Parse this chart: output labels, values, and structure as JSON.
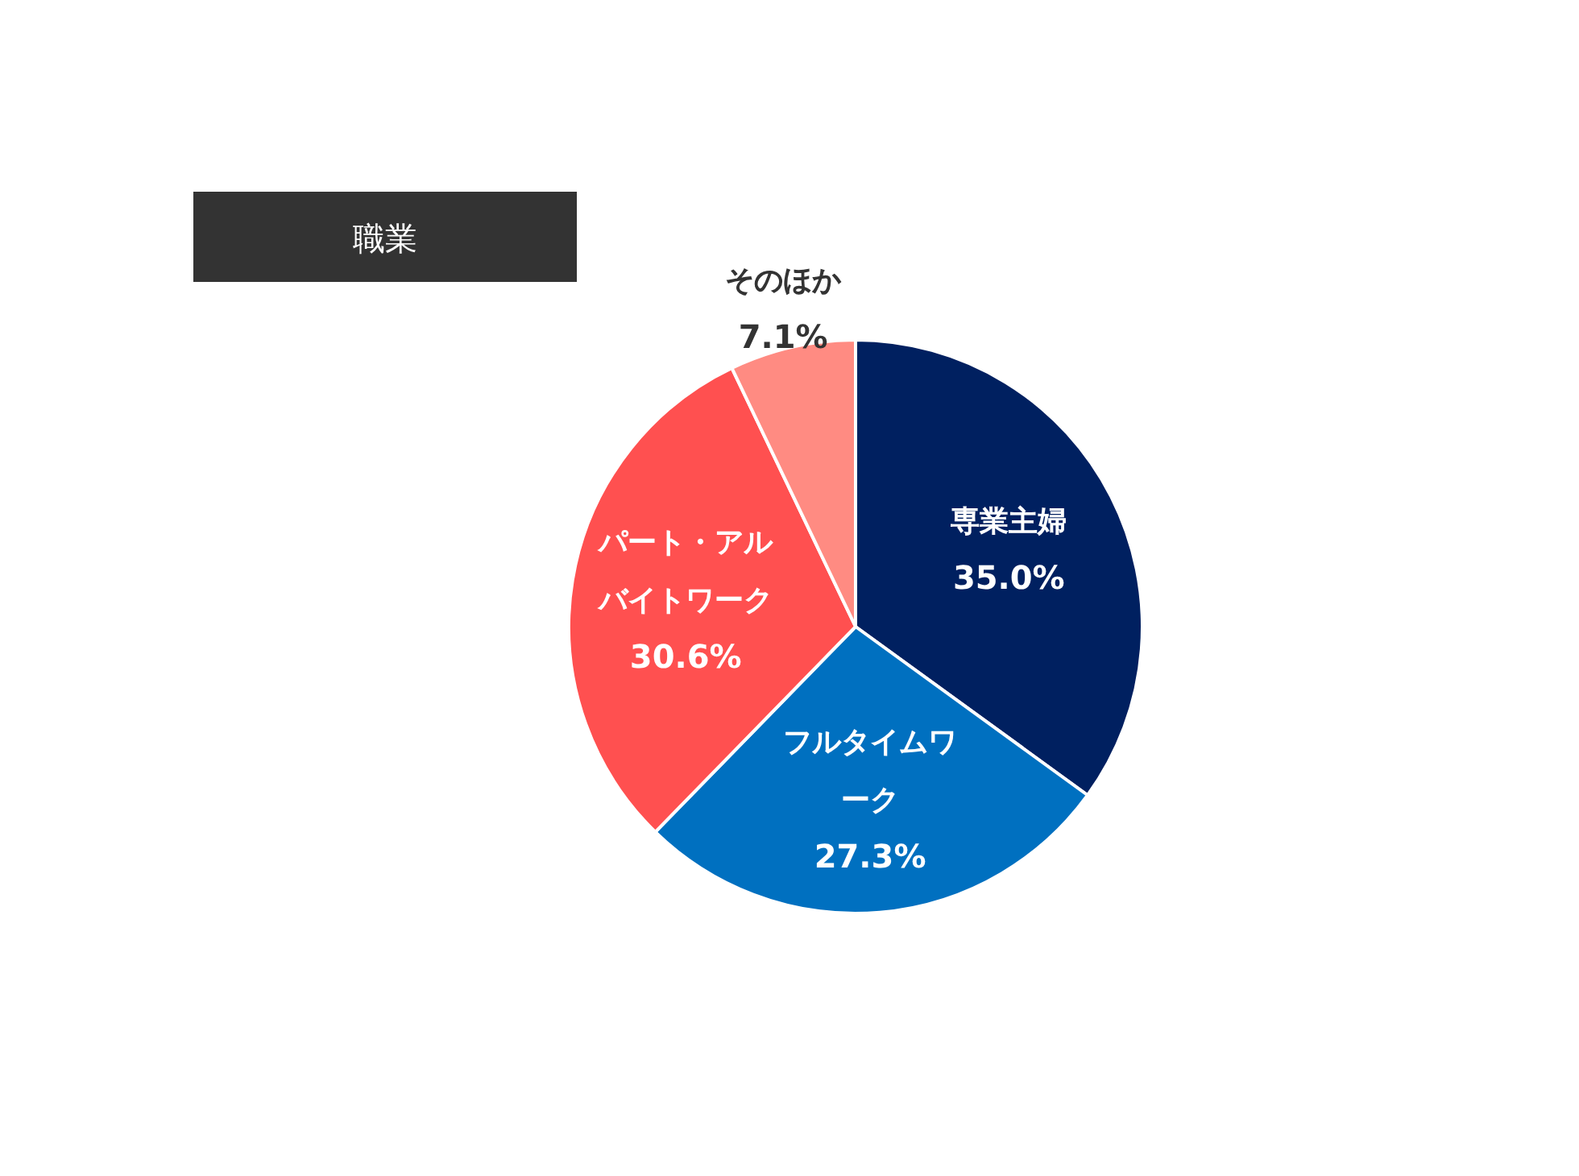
{
  "chart_data": {
    "type": "pie",
    "title": "職業",
    "categories": [
      "専業主婦",
      "フルタイムワーク",
      "パート・アルバイトワーク",
      "そのほか"
    ],
    "values": [
      35.0,
      27.3,
      30.6,
      7.1
    ],
    "value_labels": [
      "35.0%",
      "27.3%",
      "30.6%",
      "7.1%"
    ],
    "colors": [
      "#002060",
      "#0070c0",
      "#ff5050",
      "#ff8b82"
    ]
  }
}
